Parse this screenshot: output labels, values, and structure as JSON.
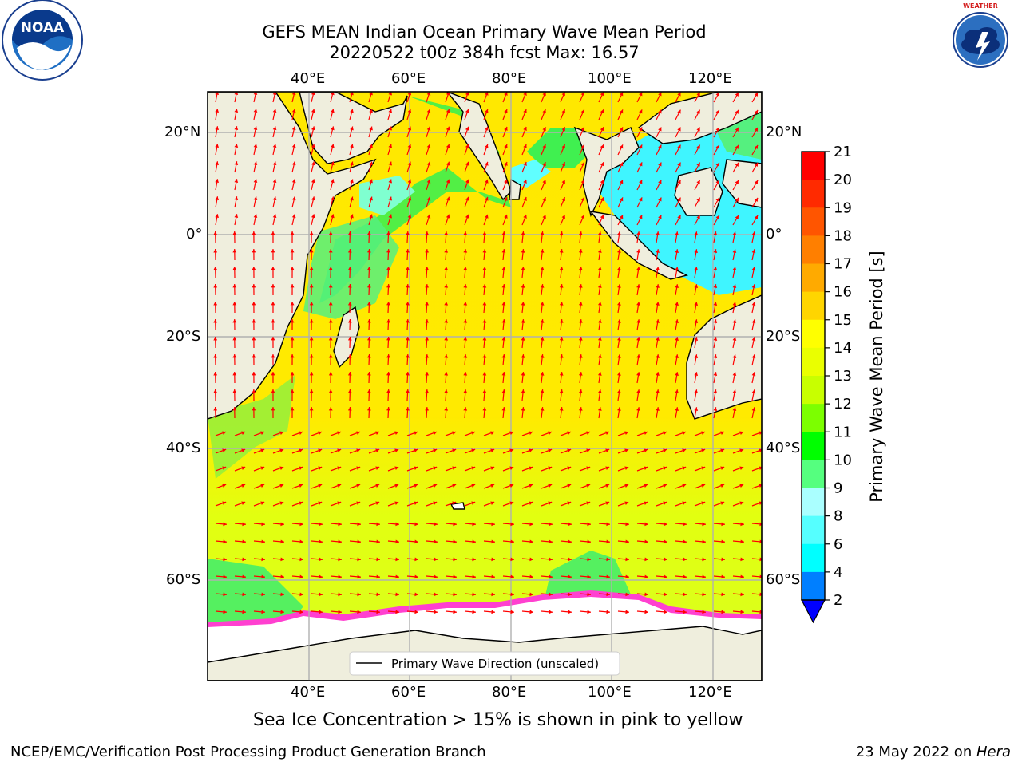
{
  "title": {
    "line1": "GEFS MEAN Indian Ocean Primary Wave Mean Period",
    "line2": "20220522 t00z 384h fcst   Max: 16.57"
  },
  "logos": {
    "left": "NOAA",
    "left_ring_text": "NATIONAL OCEANIC AND ATMOSPHERIC ADMINISTRATION · U.S. DEPARTMENT OF COMMERCE",
    "right_ring_text": "NATIONAL WEATHER SERVICE"
  },
  "map": {
    "lon_ticks": [
      "40°E",
      "60°E",
      "80°E",
      "100°E",
      "120°E"
    ],
    "lat_ticks": [
      "20°N",
      "0°",
      "20°S",
      "40°S",
      "60°S"
    ],
    "lon_range": [
      20,
      130
    ],
    "lat_range": [
      -72,
      28
    ],
    "legend_label": "Primary Wave Direction (unscaled)",
    "colors": {
      "land": "#efeedd",
      "grid": "#b0b0b0",
      "arrow": "#ff0000",
      "ice": "#ffffff"
    }
  },
  "colorbar": {
    "label": "Primary Wave Mean Period [s]",
    "ticks": [
      "21",
      "20",
      "19",
      "18",
      "17",
      "16",
      "15",
      "14",
      "13",
      "12",
      "11",
      "10",
      "9",
      "8",
      "6",
      "4",
      "2"
    ],
    "colors": [
      "#ff0000",
      "#ff2a00",
      "#ff5500",
      "#ff7f00",
      "#ffaa00",
      "#ffd500",
      "#ffff00",
      "#eaff00",
      "#c8ff00",
      "#7cff00",
      "#00ff00",
      "#55ff7f",
      "#aaffff",
      "#55ffff",
      "#00ffff",
      "#007fff"
    ],
    "under_color": "#0000ff"
  },
  "bottom_note": "Sea Ice Concentration > 15% is shown in pink to yellow",
  "footer": {
    "left": "NCEP/EMC/Verification Post Processing Product Generation Branch",
    "right_prefix": "23 May 2022 on ",
    "right_host": "Hera"
  }
}
